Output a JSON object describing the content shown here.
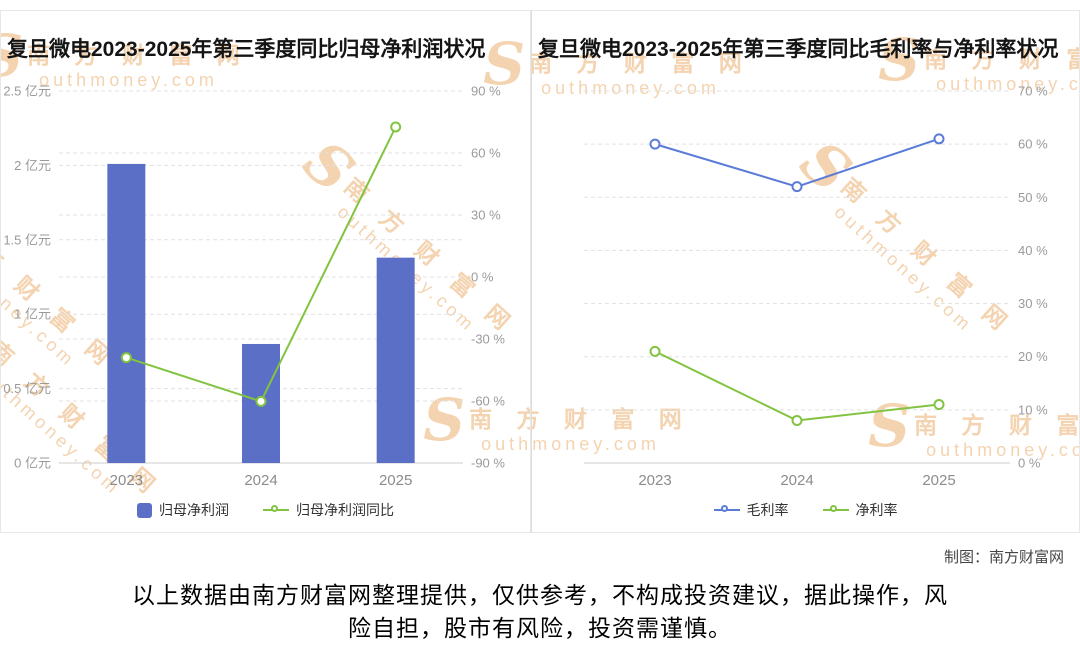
{
  "watermark": {
    "logo": "S",
    "cn": "南 方 财 富 网",
    "en": "outhmoney.com"
  },
  "credit": "制图：南方财富网",
  "disclaimer": [
    "以上数据由南方财富网整理提供，仅供参考，不构成投资建议，据此操作，风",
    "险自担，股市有风险，投资需谨慎。"
  ],
  "chart_data": [
    {
      "type": "bar",
      "title": "复旦微电2023-2025年第三季度同比归母净利润状况",
      "categories": [
        "2023",
        "2024",
        "2025"
      ],
      "grid": true,
      "legend_position": "bottom",
      "left_axis": {
        "unit": "亿元",
        "min": 0,
        "max": 2.5,
        "ticks": [
          0,
          0.5,
          1,
          1.5,
          2,
          2.5
        ],
        "tick_labels": [
          "0 亿元",
          "0.5 亿元",
          "1 亿元",
          "1.5 亿元",
          "2 亿元",
          "2.5 亿元"
        ]
      },
      "right_axis": {
        "unit": "%",
        "min": -90,
        "max": 90,
        "ticks": [
          -90,
          -60,
          -30,
          0,
          30,
          60,
          90
        ],
        "tick_labels": [
          "-90 %",
          "-60 %",
          "-30 %",
          "0 %",
          "30 %",
          "60 %",
          "90 %"
        ]
      },
      "series": [
        {
          "name": "归母净利润",
          "type": "bar",
          "axis": "left",
          "color": "#5b6fc6",
          "values": [
            2.01,
            0.8,
            1.38
          ]
        },
        {
          "name": "归母净利润同比",
          "type": "line",
          "axis": "right",
          "color": "#82c341",
          "values": [
            -39,
            -60.2,
            72.6
          ]
        }
      ]
    },
    {
      "type": "line",
      "title": "复旦微电2023-2025年第三季度同比毛利率与净利率状况",
      "categories": [
        "2023",
        "2024",
        "2025"
      ],
      "grid": true,
      "legend_position": "bottom",
      "right_axis": {
        "unit": "%",
        "min": 0,
        "max": 70,
        "ticks": [
          0,
          10,
          20,
          30,
          40,
          50,
          60,
          70
        ],
        "tick_labels": [
          "0 %",
          "10 %",
          "20 %",
          "30 %",
          "40 %",
          "50 %",
          "60 %",
          "70 %"
        ]
      },
      "series": [
        {
          "name": "毛利率",
          "type": "line",
          "axis": "right",
          "color": "#5b7bd8",
          "values": [
            60,
            52,
            61
          ]
        },
        {
          "name": "净利率",
          "type": "line",
          "axis": "right",
          "color": "#82c341",
          "values": [
            21,
            8,
            11
          ]
        }
      ]
    }
  ]
}
